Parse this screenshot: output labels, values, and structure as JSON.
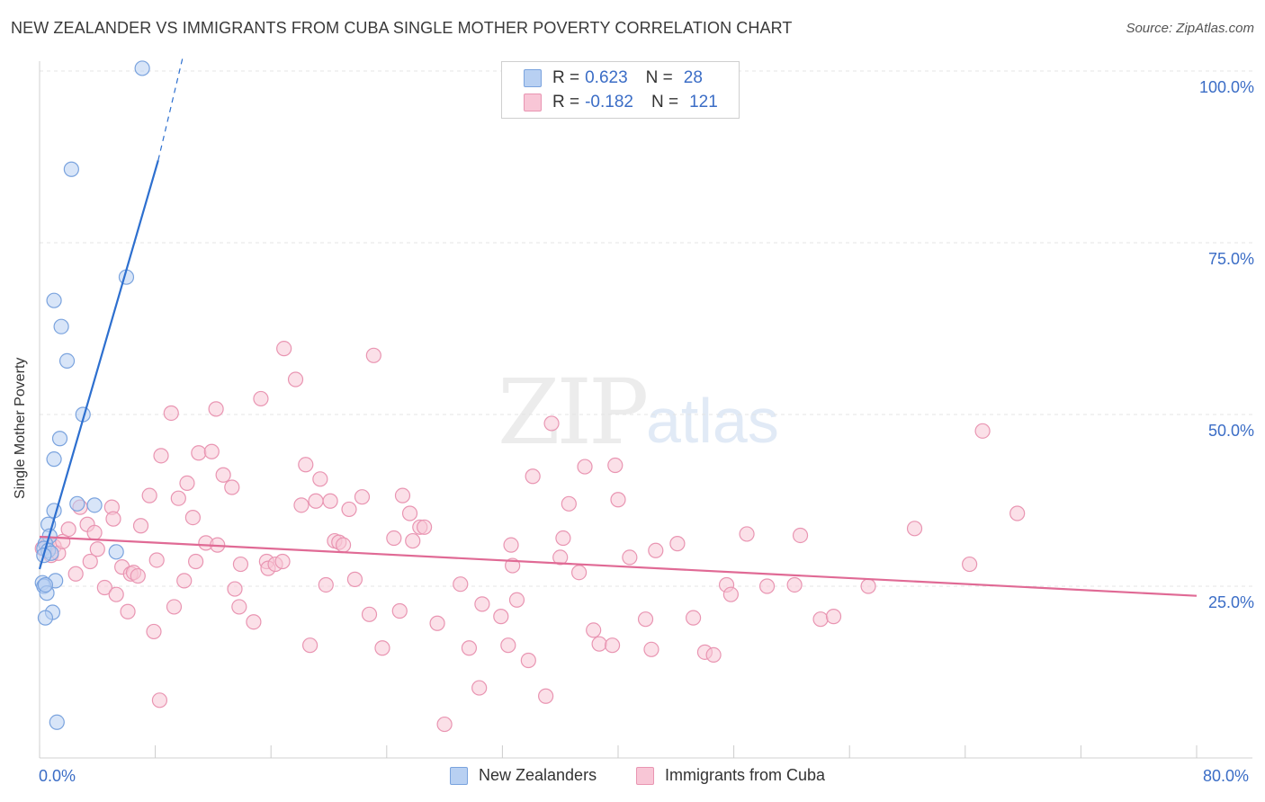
{
  "title": "NEW ZEALANDER VS IMMIGRANTS FROM CUBA SINGLE MOTHER POVERTY CORRELATION CHART",
  "source": "Source: ZipAtlas.com",
  "watermark": {
    "zip": "ZIP",
    "atlas": "atlas"
  },
  "colors": {
    "blue_fill": "#b8d0f2",
    "blue_stroke": "#7aa3de",
    "blue_line": "#2d6fcf",
    "pink_fill": "#f8c6d6",
    "pink_stroke": "#e995b2",
    "pink_line": "#e06a95",
    "axis_text": "#3b6dc6",
    "grid": "#e4e4e4"
  },
  "legend": {
    "rows": [
      {
        "r_label": "R =",
        "r_value": "0.623",
        "n_label": "N =",
        "n_value": "28"
      },
      {
        "r_label": "R =",
        "r_value": "-0.182",
        "n_label": "N =",
        "n_value": "121"
      }
    ]
  },
  "bottom_legend": {
    "series1": "New Zealanders",
    "series2": "Immigrants from Cuba"
  },
  "chart_data": {
    "type": "scatter",
    "title": "NEW ZEALANDER VS IMMIGRANTS FROM CUBA SINGLE MOTHER POVERTY CORRELATION CHART",
    "xlabel": "",
    "ylabel": "Single Mother Poverty",
    "xlim": [
      0,
      80
    ],
    "ylim": [
      2,
      102
    ],
    "x_tick_labels": [
      "0.0%",
      "80.0%"
    ],
    "y_tick_labels": [
      "100.0%",
      "75.0%",
      "50.0%",
      "25.0%"
    ],
    "y_ticks": [
      100,
      75,
      50,
      25
    ],
    "grid": true,
    "series": [
      {
        "name": "New Zealanders",
        "r": 0.623,
        "n": 28,
        "trend": {
          "x0": 0.0,
          "y0": 27.5,
          "x1": 8.2,
          "y1": 87.0,
          "dashed_to_x": 9.9,
          "dashed_to_y": 102
        },
        "points": [
          [
            7.1,
            100.4
          ],
          [
            2.2,
            85.7
          ],
          [
            6.0,
            70.0
          ],
          [
            1.0,
            66.6
          ],
          [
            1.5,
            62.8
          ],
          [
            1.9,
            57.8
          ],
          [
            3.0,
            50.0
          ],
          [
            1.4,
            46.5
          ],
          [
            1.0,
            43.5
          ],
          [
            2.6,
            37.0
          ],
          [
            3.8,
            36.8
          ],
          [
            1.0,
            36.0
          ],
          [
            0.6,
            34.0
          ],
          [
            0.7,
            32.3
          ],
          [
            0.4,
            31.2
          ],
          [
            0.3,
            30.5
          ],
          [
            0.6,
            30.2
          ],
          [
            0.8,
            29.8
          ],
          [
            0.3,
            29.5
          ],
          [
            5.3,
            30.0
          ],
          [
            1.1,
            25.8
          ],
          [
            0.2,
            25.5
          ],
          [
            0.3,
            25.0
          ],
          [
            0.5,
            24.0
          ],
          [
            0.9,
            21.2
          ],
          [
            0.4,
            20.4
          ],
          [
            1.2,
            5.2
          ],
          [
            0.4,
            25.2
          ]
        ]
      },
      {
        "name": "Immigrants from Cuba",
        "r": -0.182,
        "n": 121,
        "trend": {
          "x0": 0.0,
          "y0": 32.2,
          "x1": 80.0,
          "y1": 23.6
        },
        "points": [
          [
            0.2,
            30.5
          ],
          [
            0.5,
            31.0
          ],
          [
            0.8,
            29.5
          ],
          [
            1.0,
            30.8
          ],
          [
            1.3,
            29.8
          ],
          [
            1.6,
            31.5
          ],
          [
            2.0,
            33.3
          ],
          [
            2.5,
            26.8
          ],
          [
            2.8,
            36.5
          ],
          [
            3.3,
            34.0
          ],
          [
            3.5,
            28.6
          ],
          [
            3.8,
            32.8
          ],
          [
            4.0,
            30.4
          ],
          [
            4.5,
            24.8
          ],
          [
            5.0,
            36.5
          ],
          [
            5.1,
            34.8
          ],
          [
            5.3,
            23.8
          ],
          [
            5.7,
            27.8
          ],
          [
            6.1,
            21.3
          ],
          [
            6.3,
            26.8
          ],
          [
            6.5,
            27.0
          ],
          [
            6.8,
            26.5
          ],
          [
            7.0,
            33.8
          ],
          [
            7.6,
            38.2
          ],
          [
            7.9,
            18.4
          ],
          [
            8.1,
            28.8
          ],
          [
            8.3,
            8.4
          ],
          [
            8.4,
            44.0
          ],
          [
            9.1,
            50.2
          ],
          [
            9.3,
            22.0
          ],
          [
            9.6,
            37.8
          ],
          [
            10.0,
            25.8
          ],
          [
            10.2,
            40.0
          ],
          [
            10.6,
            35.0
          ],
          [
            10.8,
            28.6
          ],
          [
            11.0,
            44.4
          ],
          [
            11.5,
            31.3
          ],
          [
            11.9,
            44.6
          ],
          [
            12.3,
            31.0
          ],
          [
            12.2,
            50.8
          ],
          [
            12.7,
            41.2
          ],
          [
            13.3,
            39.4
          ],
          [
            13.5,
            24.6
          ],
          [
            13.8,
            22.0
          ],
          [
            13.9,
            28.2
          ],
          [
            14.8,
            19.8
          ],
          [
            15.3,
            52.3
          ],
          [
            15.7,
            28.6
          ],
          [
            15.8,
            27.6
          ],
          [
            16.3,
            28.2
          ],
          [
            16.8,
            28.6
          ],
          [
            16.9,
            59.6
          ],
          [
            17.7,
            55.1
          ],
          [
            18.1,
            36.8
          ],
          [
            18.4,
            42.7
          ],
          [
            18.7,
            16.4
          ],
          [
            19.1,
            37.4
          ],
          [
            19.4,
            40.6
          ],
          [
            19.8,
            25.2
          ],
          [
            20.1,
            37.4
          ],
          [
            20.4,
            31.6
          ],
          [
            20.7,
            31.4
          ],
          [
            21.0,
            31.0
          ],
          [
            21.4,
            36.2
          ],
          [
            21.8,
            26.0
          ],
          [
            22.3,
            38.0
          ],
          [
            22.8,
            20.9
          ],
          [
            23.1,
            58.6
          ],
          [
            23.7,
            16.0
          ],
          [
            24.5,
            32.0
          ],
          [
            24.9,
            21.4
          ],
          [
            25.1,
            38.2
          ],
          [
            25.6,
            35.6
          ],
          [
            25.8,
            31.6
          ],
          [
            26.3,
            33.6
          ],
          [
            26.6,
            33.6
          ],
          [
            27.5,
            19.6
          ],
          [
            28.0,
            4.9
          ],
          [
            29.1,
            25.3
          ],
          [
            29.7,
            16.0
          ],
          [
            30.4,
            10.2
          ],
          [
            30.6,
            22.4
          ],
          [
            31.9,
            20.6
          ],
          [
            32.4,
            16.4
          ],
          [
            32.6,
            31.0
          ],
          [
            32.7,
            28.0
          ],
          [
            33.0,
            23.0
          ],
          [
            33.8,
            14.2
          ],
          [
            34.1,
            41.0
          ],
          [
            35.0,
            9.0
          ],
          [
            35.4,
            48.7
          ],
          [
            36.0,
            29.2
          ],
          [
            36.2,
            32.0
          ],
          [
            36.6,
            37.0
          ],
          [
            37.3,
            27.0
          ],
          [
            37.7,
            42.4
          ],
          [
            38.3,
            18.6
          ],
          [
            38.7,
            16.6
          ],
          [
            39.6,
            16.4
          ],
          [
            39.8,
            42.6
          ],
          [
            40.0,
            37.6
          ],
          [
            40.8,
            29.2
          ],
          [
            41.9,
            20.2
          ],
          [
            42.3,
            15.8
          ],
          [
            42.6,
            30.2
          ],
          [
            44.1,
            31.2
          ],
          [
            45.2,
            20.4
          ],
          [
            46.0,
            15.4
          ],
          [
            46.6,
            15.0
          ],
          [
            47.5,
            25.2
          ],
          [
            47.8,
            23.8
          ],
          [
            48.9,
            32.6
          ],
          [
            50.3,
            25.0
          ],
          [
            52.2,
            25.2
          ],
          [
            52.6,
            32.4
          ],
          [
            54.0,
            20.2
          ],
          [
            54.9,
            20.6
          ],
          [
            57.3,
            25.0
          ],
          [
            60.5,
            33.4
          ],
          [
            64.3,
            28.2
          ],
          [
            65.2,
            47.6
          ],
          [
            67.6,
            35.6
          ]
        ]
      }
    ]
  }
}
